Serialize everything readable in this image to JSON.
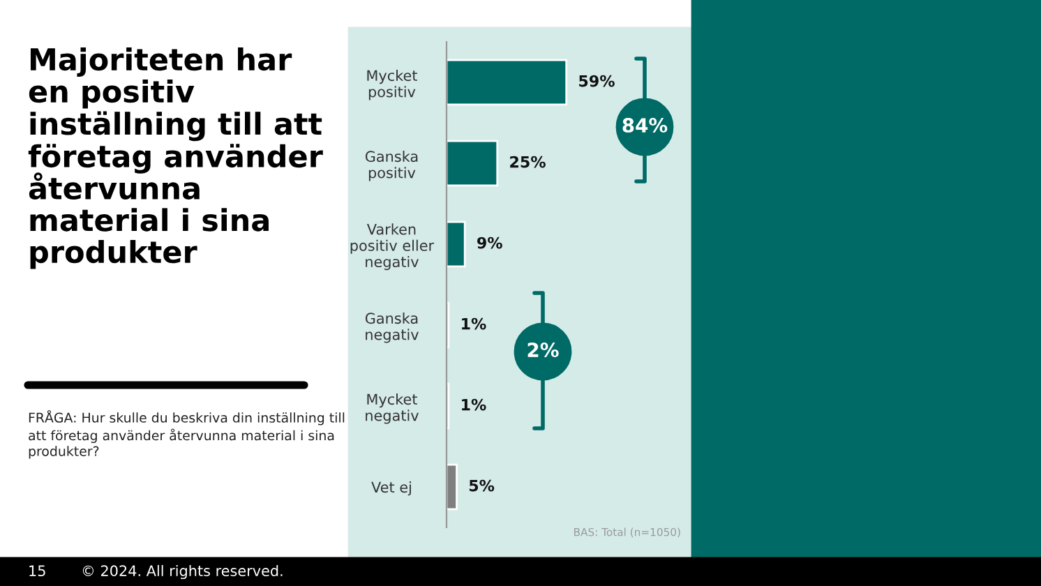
{
  "chart_data": {
    "type": "bar",
    "orientation": "horizontal",
    "title": "Majoriteten har\nen positiv\ninställning till att\nföretag använder\nåtervunna\nmaterial i sina\nprodukter",
    "subtitle": "FRÅGA: Hur skulle du beskriva din inställning till\natt företag använder återvunna material i sina\nprodukter?",
    "categories": [
      "Mycket\npositiv",
      "Ganska\npositiv",
      "Varken\npositiv eller\nnegativ",
      "Ganska\nnegativ",
      "Mycket\nnegativ",
      "Vet ej"
    ],
    "values": [
      59,
      25,
      9,
      1,
      1,
      5
    ],
    "colors": [
      "#006a66",
      "#006a66",
      "#006a66",
      "#006a66",
      "#006a66",
      "#7f7f7f"
    ],
    "value_labels": [
      "59%",
      "25%",
      "9%",
      "1%",
      "1%",
      "5%"
    ],
    "annotations": [
      "84%",
      "2%",
      "BAS: Total (n=1050)",
      "15",
      "© 2024. All rights reserved."
    ],
    "grid": false,
    "legend": false
  }
}
